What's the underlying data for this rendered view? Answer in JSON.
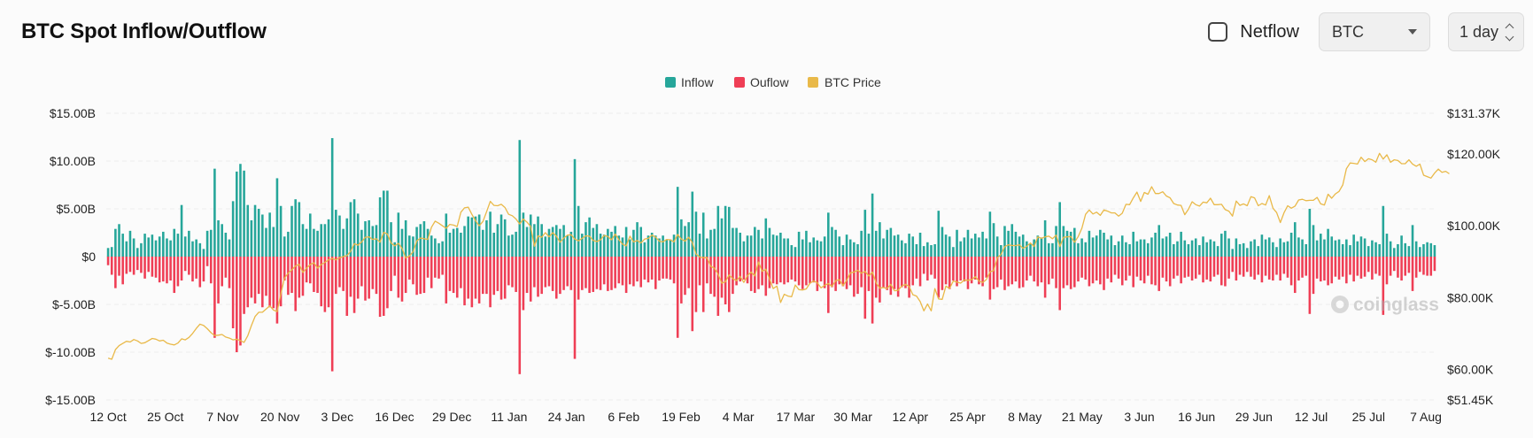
{
  "header": {
    "title": "BTC Spot Inflow/Outflow",
    "netflow_label": "Netflow",
    "netflow_checked": false,
    "coin_select": "BTC",
    "interval_select": "1 day"
  },
  "colors": {
    "inflow": "#26a69a",
    "outflow": "#ef3e55",
    "price": "#e9b949",
    "grid": "#ececec"
  },
  "watermark": "coinglass",
  "chart_data": {
    "type": "bar",
    "legend": [
      "Inflow",
      "Ouflow",
      "BTC Price"
    ],
    "legend_position": "top-center",
    "grid": true,
    "x_tick_labels": [
      "12 Oct",
      "25 Oct",
      "7 Nov",
      "20 Nov",
      "3 Dec",
      "16 Dec",
      "29 Dec",
      "11 Jan",
      "24 Jan",
      "6 Feb",
      "19 Feb",
      "4 Mar",
      "17 Mar",
      "30 Mar",
      "12 Apr",
      "25 Apr",
      "8 May",
      "21 May",
      "3 Jun",
      "16 Jun",
      "29 Jun",
      "12 Jul",
      "25 Jul",
      "7 Aug"
    ],
    "y_left": {
      "min": -15,
      "max": 15,
      "unit": "B",
      "tick_labels": [
        "$15.00B",
        "$10.00B",
        "$5.00B",
        "$0",
        "$-5.00B",
        "$-10.00B",
        "$-15.00B"
      ]
    },
    "y_right": {
      "min": 51.45,
      "max": 131.37,
      "unit": "K",
      "tick_labels": [
        "$131.37K",
        "$120.00K",
        "$100.00K",
        "$80.00K",
        "$60.00K",
        "$51.45K"
      ]
    },
    "inflow": [
      0.9,
      1.0,
      2.9,
      3.4,
      2.4,
      1.6,
      2.7,
      1.9,
      0.9,
      1.4,
      2.4,
      2.0,
      2.3,
      1.7,
      2.1,
      2.6,
      1.9,
      1.7,
      2.9,
      2.4,
      5.4,
      2.1,
      2.7,
      1.6,
      1.8,
      1.4,
      0.8,
      2.7,
      2.8,
      9.2,
      3.8,
      3.4,
      2.5,
      1.8,
      5.8,
      8.9,
      9.7,
      9.0,
      5.4,
      3.8,
      5.4,
      5.0,
      4.4,
      3.0,
      4.6,
      3.1,
      8.2,
      5.3,
      2.1,
      2.6,
      5.3,
      6.0,
      5.7,
      3.4,
      2.9,
      4.5,
      2.9,
      2.7,
      3.4,
      3.4,
      3.9,
      12.4,
      4.9,
      4.3,
      2.9,
      4.0,
      5.7,
      6.0,
      4.5,
      2.8,
      3.7,
      3.8,
      3.2,
      3.3,
      6.2,
      6.9,
      6.9,
      3.6,
      1.5,
      4.6,
      2.9,
      3.8,
      2.2,
      2.1,
      3.1,
      3.4,
      3.7,
      2.9,
      2.2,
      1.9,
      1.4,
      1.6,
      4.5,
      2.5,
      2.9,
      3.0,
      2.5,
      3.2,
      4.2,
      4.1,
      4.2,
      4.4,
      2.8,
      3.8,
      4.7,
      2.5,
      3.4,
      4.4,
      3.9,
      2.2,
      2.3,
      2.6,
      12.2,
      4.6,
      3.1,
      4.4,
      3.4,
      4.2,
      3.4,
      2.1,
      2.9,
      3.1,
      3.3,
      2.9,
      3.3,
      2.2,
      2.6,
      10.2,
      5.3,
      2.4,
      3.6,
      4.1,
      3.0,
      3.4,
      2.4,
      2.3,
      2.9,
      2.6,
      3.2,
      2.2,
      2.0,
      3.1,
      1.8,
      2.8,
      3.6,
      3.1,
      1.5,
      2.2,
      2.5,
      2.2,
      1.9,
      2.2,
      1.8,
      1.8,
      2.3,
      7.3,
      3.9,
      3.2,
      3.6,
      6.8,
      4.7,
      2.4,
      4.6,
      1.9,
      2.8,
      2.9,
      5.3,
      4.0,
      5.3,
      5.2,
      3.0,
      3.0,
      2.5,
      1.6,
      2.2,
      2.2,
      3.1,
      2.8,
      1.9,
      4.0,
      3.0,
      2.3,
      2.2,
      2.5,
      1.9,
      1.9,
      1.2,
      1.0,
      2.6,
      1.8,
      2.7,
      1.5,
      2.0,
      1.7,
      1.6,
      2.1,
      4.6,
      3.1,
      2.8,
      2.1,
      1.2,
      2.3,
      1.8,
      1.5,
      1.3,
      2.7,
      4.9,
      2.4,
      6.6,
      2.7,
      3.6,
      1.9,
      2.8,
      3.0,
      2.2,
      2.3,
      1.7,
      1.4,
      2.4,
      2.1,
      1.3,
      2.5,
      1.1,
      1.5,
      1.2,
      1.3,
      4.8,
      3.1,
      2.3,
      2.1,
      1.0,
      2.8,
      1.6,
      2.0,
      2.8,
      1.9,
      2.4,
      2.0,
      2.6,
      1.9,
      4.7,
      3.5,
      2.1,
      1.2,
      3.2,
      2.7,
      3.4,
      2.6,
      2.1,
      2.3,
      1.6,
      1.3,
      1.8,
      2.2,
      2.0,
      3.8,
      1.4,
      1.4,
      3.2,
      5.7,
      3.2,
      2.7,
      2.6,
      3.0,
      1.4,
      1.9,
      1.5,
      2.7,
      2.0,
      2.2,
      2.8,
      2.5,
      1.8,
      2.2,
      1.2,
      1.6,
      2.2,
      1.5,
      1.3,
      2.6,
      1.6,
      1.8,
      1.8,
      1.4,
      2.0,
      2.5,
      3.3,
      1.9,
      2.1,
      2.5,
      1.3,
      1.6,
      2.6,
      1.7,
      1.3,
      1.7,
      1.9,
      1.2,
      2.1,
      1.5,
      1.8,
      1.6,
      1.1,
      2.4,
      2.7,
      1.9,
      0.8,
      1.9,
      1.3,
      1.4,
      0.9,
      1.6,
      1.8,
      1.1,
      2.3,
      1.8,
      2.0,
      1.5,
      1.0,
      1.9,
      1.5,
      1.6,
      2.5,
      3.6,
      2.0,
      1.8,
      1.3,
      5.0,
      3.3,
      1.7,
      2.4,
      1.8,
      2.9,
      2.1,
      1.7,
      1.8,
      1.3,
      1.8,
      1.2,
      2.3,
      1.6,
      2.1,
      1.9,
      1.1,
      1.7,
      1.5,
      1.3,
      5.3,
      2.4,
      1.6,
      0.9,
      1.3,
      2.2,
      1.4,
      1.1,
      3.3,
      1.6,
      1.0,
      1.3,
      1.5,
      1.4,
      1.2
    ],
    "outflow": [
      -0.9,
      -1.9,
      -3.3,
      -2.0,
      -2.9,
      -1.8,
      -1.6,
      -1.9,
      -1.4,
      -1.7,
      -2.3,
      -1.6,
      -2.1,
      -2.2,
      -2.7,
      -2.6,
      -2.8,
      -2.5,
      -3.8,
      -3.1,
      -2.5,
      -1.5,
      -1.9,
      -2.6,
      -2.3,
      -3.2,
      -2.6,
      -1.0,
      -2.8,
      -8.5,
      -4.9,
      -3.1,
      -2.2,
      -3.3,
      -7.5,
      -10.0,
      -9.3,
      -6.0,
      -5.3,
      -4.3,
      -4.9,
      -3.9,
      -5.3,
      -4.1,
      -5.3,
      -5.4,
      -7.0,
      -5.2,
      -2.5,
      -4.0,
      -3.8,
      -5.7,
      -4.3,
      -4.1,
      -2.7,
      -2.8,
      -3.7,
      -3.8,
      -5.2,
      -5.8,
      -5.3,
      -12.0,
      -3.9,
      -3.2,
      -3.6,
      -6.2,
      -4.2,
      -5.9,
      -4.4,
      -3.1,
      -4.6,
      -4.4,
      -3.4,
      -3.9,
      -6.3,
      -6.2,
      -5.4,
      -3.6,
      -2.0,
      -4.3,
      -4.7,
      -3.8,
      -2.4,
      -2.9,
      -4.0,
      -3.9,
      -3.8,
      -2.2,
      -3.3,
      -2.2,
      -2.3,
      -1.9,
      -4.9,
      -3.6,
      -3.8,
      -4.3,
      -3.3,
      -5.1,
      -4.4,
      -5.3,
      -4.4,
      -4.9,
      -3.9,
      -3.9,
      -5.3,
      -4.0,
      -3.6,
      -4.5,
      -4.4,
      -3.0,
      -3.2,
      -3.7,
      -12.3,
      -5.6,
      -3.8,
      -4.7,
      -3.2,
      -4.2,
      -3.9,
      -3.2,
      -3.1,
      -3.6,
      -4.4,
      -3.9,
      -3.5,
      -3.1,
      -3.5,
      -10.7,
      -4.5,
      -3.5,
      -3.3,
      -3.8,
      -3.7,
      -3.4,
      -3.5,
      -2.9,
      -3.6,
      -3.5,
      -3.3,
      -2.8,
      -3.0,
      -3.8,
      -2.9,
      -3.1,
      -2.6,
      -3.2,
      -2.4,
      -2.7,
      -2.4,
      -3.4,
      -2.5,
      -2.3,
      -2.3,
      -2.4,
      -2.8,
      -8.5,
      -4.9,
      -4.0,
      -3.3,
      -7.8,
      -5.8,
      -3.0,
      -5.8,
      -2.8,
      -3.9,
      -4.2,
      -6.2,
      -4.3,
      -5.0,
      -5.8,
      -3.9,
      -3.0,
      -2.6,
      -2.4,
      -2.8,
      -3.6,
      -3.8,
      -3.4,
      -3.0,
      -4.1,
      -3.3,
      -2.8,
      -2.9,
      -2.7,
      -2.9,
      -2.7,
      -2.4,
      -2.6,
      -3.0,
      -3.4,
      -3.0,
      -2.8,
      -2.7,
      -3.6,
      -2.6,
      -3.3,
      -5.9,
      -3.2,
      -3.6,
      -2.9,
      -3.1,
      -3.4,
      -3.0,
      -4.2,
      -3.9,
      -3.2,
      -6.5,
      -3.6,
      -7.0,
      -4.3,
      -4.8,
      -3.2,
      -3.5,
      -4.0,
      -3.4,
      -4.2,
      -3.2,
      -3.3,
      -4.3,
      -3.0,
      -2.3,
      -3.1,
      -1.8,
      -2.5,
      -1.9,
      -2.3,
      -4.3,
      -3.5,
      -2.9,
      -3.4,
      -2.5,
      -3.1,
      -2.5,
      -2.6,
      -3.4,
      -2.8,
      -2.4,
      -2.9,
      -3.1,
      -2.2,
      -4.5,
      -3.4,
      -3.2,
      -2.4,
      -3.5,
      -3.1,
      -2.9,
      -2.6,
      -3.3,
      -3.2,
      -2.5,
      -2.0,
      -2.6,
      -3.1,
      -2.7,
      -4.3,
      -2.9,
      -2.3,
      -3.3,
      -5.6,
      -3.3,
      -3.0,
      -3.4,
      -3.2,
      -2.6,
      -2.2,
      -2.4,
      -3.1,
      -2.8,
      -2.5,
      -2.9,
      -3.5,
      -2.3,
      -2.7,
      -1.9,
      -2.3,
      -3.0,
      -2.5,
      -2.0,
      -3.2,
      -2.1,
      -2.5,
      -2.8,
      -2.0,
      -2.9,
      -3.0,
      -3.6,
      -2.2,
      -2.6,
      -3.1,
      -2.3,
      -2.0,
      -2.8,
      -2.2,
      -2.1,
      -2.5,
      -2.3,
      -1.9,
      -2.7,
      -2.4,
      -2.6,
      -2.1,
      -1.9,
      -3.0,
      -3.1,
      -2.3,
      -1.6,
      -2.5,
      -1.9,
      -2.1,
      -1.6,
      -2.1,
      -2.4,
      -1.9,
      -2.7,
      -2.0,
      -2.4,
      -2.5,
      -1.9,
      -2.5,
      -1.8,
      -2.2,
      -3.0,
      -3.8,
      -2.5,
      -2.2,
      -2.0,
      -6.0,
      -3.9,
      -2.3,
      -2.6,
      -2.5,
      -3.0,
      -2.8,
      -2.1,
      -2.4,
      -2.1,
      -2.8,
      -1.9,
      -2.6,
      -2.0,
      -2.3,
      -2.1,
      -1.6,
      -2.4,
      -1.8,
      -2.0,
      -6.1,
      -2.9,
      -2.0,
      -1.5,
      -2.2,
      -2.5,
      -2.0,
      -1.7,
      -3.6,
      -2.2,
      -1.6,
      -1.9,
      -2.0,
      -2.0,
      -1.5
    ],
    "price": [
      63.1,
      62.8,
      65.5,
      66.6,
      67.2,
      67.8,
      67.6,
      68.3,
      67.9,
      67.2,
      67.4,
      68.0,
      68.6,
      68.4,
      67.9,
      68.1,
      67.3,
      67.0,
      66.8,
      67.3,
      68.5,
      68.2,
      68.9,
      70.0,
      71.4,
      72.6,
      72.2,
      71.3,
      70.2,
      69.4,
      69.5,
      69.7,
      69.0,
      68.7,
      68.2,
      68.4,
      68.0,
      67.5,
      69.3,
      72.2,
      74.7,
      75.9,
      75.9,
      76.8,
      77.7,
      76.5,
      76.1,
      81.0,
      85.4,
      86.8,
      87.7,
      88.8,
      89.3,
      87.0,
      88.2,
      89.2,
      89.7,
      88.2,
      89.2,
      89.8,
      90.5,
      90.9,
      90.5,
      91.1,
      91.4,
      91.7,
      92.9,
      95.0,
      94.6,
      95.5,
      96.8,
      96.9,
      96.2,
      96.4,
      95.4,
      98.2,
      97.7,
      95.2,
      94.4,
      95.1,
      93.7,
      91.0,
      91.6,
      92.8,
      95.8,
      96.6,
      96.4,
      96.2,
      99.6,
      101.3,
      100.7,
      100.0,
      99.3,
      100.4,
      100.2,
      99.8,
      103.8,
      105.0,
      105.2,
      103.2,
      101.4,
      100.0,
      101.2,
      103.9,
      106.8,
      105.7,
      105.6,
      106.0,
      105.1,
      103.2,
      102.8,
      101.9,
      100.5,
      101.9,
      101.0,
      99.8,
      94.3,
      97.2,
      96.8,
      98.1,
      96.9,
      98.1,
      97.1,
      95.4,
      96.6,
      97.4,
      97.5,
      96.3,
      95.8,
      96.5,
      97.2,
      97.1,
      95.9,
      95.6,
      96.1,
      97.3,
      97.0,
      96.1,
      97.7,
      96.1,
      94.9,
      94.4,
      97.1,
      95.5,
      95.9,
      95.2,
      96.3,
      96.5,
      97.4,
      96.8,
      95.7,
      95.5,
      96.2,
      96.1,
      95.5,
      97.6,
      96.3,
      95.7,
      96.8,
      95.3,
      92.1,
      91.3,
      91.1,
      91.1,
      88.7,
      88.2,
      86.5,
      84.0,
      84.4,
      86.3,
      85.3,
      84.7,
      85.9,
      84.2,
      86.1,
      87.1,
      86.0,
      89.9,
      87.3,
      87.9,
      85.2,
      82.5,
      83.2,
      78.6,
      80.9,
      80.4,
      80.2,
      83.5,
      82.2,
      82.1,
      82.4,
      84.0,
      84.6,
      84.1,
      82.7,
      83.4,
      83.9,
      83.1,
      84.7,
      85.0,
      83.3,
      84.8,
      86.9,
      87.1,
      87.6,
      86.8,
      87.3,
      86.0,
      87.1,
      84.1,
      82.6,
      82.8,
      82.5,
      83.7,
      81.9,
      82.0,
      83.2,
      83.7,
      83.1,
      80.8,
      80.4,
      78.9,
      76.3,
      78.2,
      76.3,
      82.5,
      79.6,
      79.5,
      83.2,
      82.5,
      84.6,
      84.3,
      84.0,
      84.9,
      84.8,
      85.0,
      85.8,
      84.6,
      84.2,
      85.0,
      87.2,
      87.5,
      91.1,
      92.0,
      94.2,
      94.7,
      94.5,
      94.5,
      94.7,
      93.7,
      94.3,
      95.2,
      94.2,
      96.9,
      96.5,
      96.9,
      97.1,
      96.4,
      97.4,
      94.2,
      96.8,
      96.9,
      97.0,
      95.4,
      97.0,
      99.3,
      103.2,
      104.4,
      103.3,
      103.8,
      102.9,
      104.4,
      104.1,
      103.6,
      103.6,
      102.7,
      103.5,
      106.0,
      105.9,
      107.8,
      109.4,
      106.8,
      109.3,
      108.8,
      110.9,
      109.0,
      109.0,
      109.5,
      108.3,
      107.8,
      106.2,
      105.8,
      105.7,
      103.1,
      104.6,
      106.7,
      105.9,
      105.5,
      106.6,
      106.4,
      107.7,
      105.9,
      105.9,
      106.0,
      104.5,
      104.1,
      102.7,
      106.9,
      105.7,
      106.1,
      105.6,
      108.1,
      107.8,
      105.6,
      106.2,
      105.8,
      108.4,
      104.9,
      103.7,
      100.9,
      103.6,
      105.6,
      104.9,
      105.5,
      107.2,
      107.4,
      107.0,
      107.1,
      107.1,
      107.9,
      106.1,
      105.8,
      108.8,
      107.7,
      108.9,
      109.6,
      111.4,
      115.9,
      117.5,
      117.4,
      117.2,
      119.1,
      117.9,
      118.7,
      118.4,
      117.7,
      120.2,
      118.6,
      119.8,
      117.7,
      118.4,
      118.2,
      117.3,
      117.3,
      118.4,
      117.2,
      116.6,
      117.2,
      114.1,
      113.7,
      113.3,
      114.7,
      115.8,
      114.9,
      115.2,
      114.5
    ]
  }
}
